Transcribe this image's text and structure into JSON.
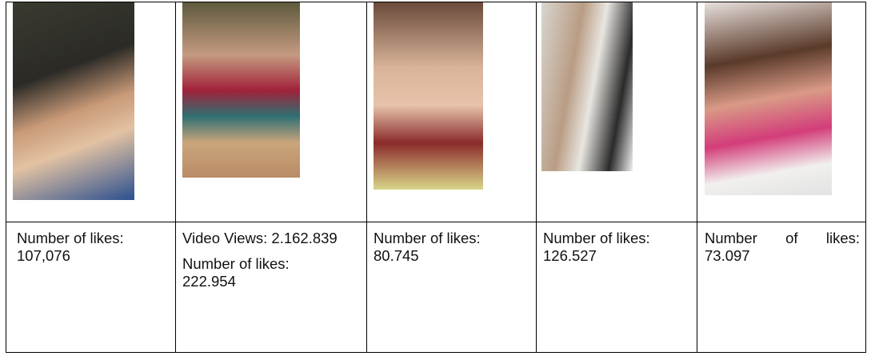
{
  "table": {
    "rows": [
      [],
      [
        {
          "paragraphs": [
            "Number of likes: 107,076"
          ]
        },
        {
          "paragraphs": [
            "Video Views: 2.162.839",
            "Number of likes: 222.954"
          ]
        },
        {
          "paragraphs": [
            "Number of likes: 80.745"
          ]
        },
        {
          "paragraphs": [
            "Number of likes: 126.527"
          ]
        },
        {
          "paragraphs": [
            "Number of likes: 73.097"
          ]
        }
      ]
    ]
  }
}
